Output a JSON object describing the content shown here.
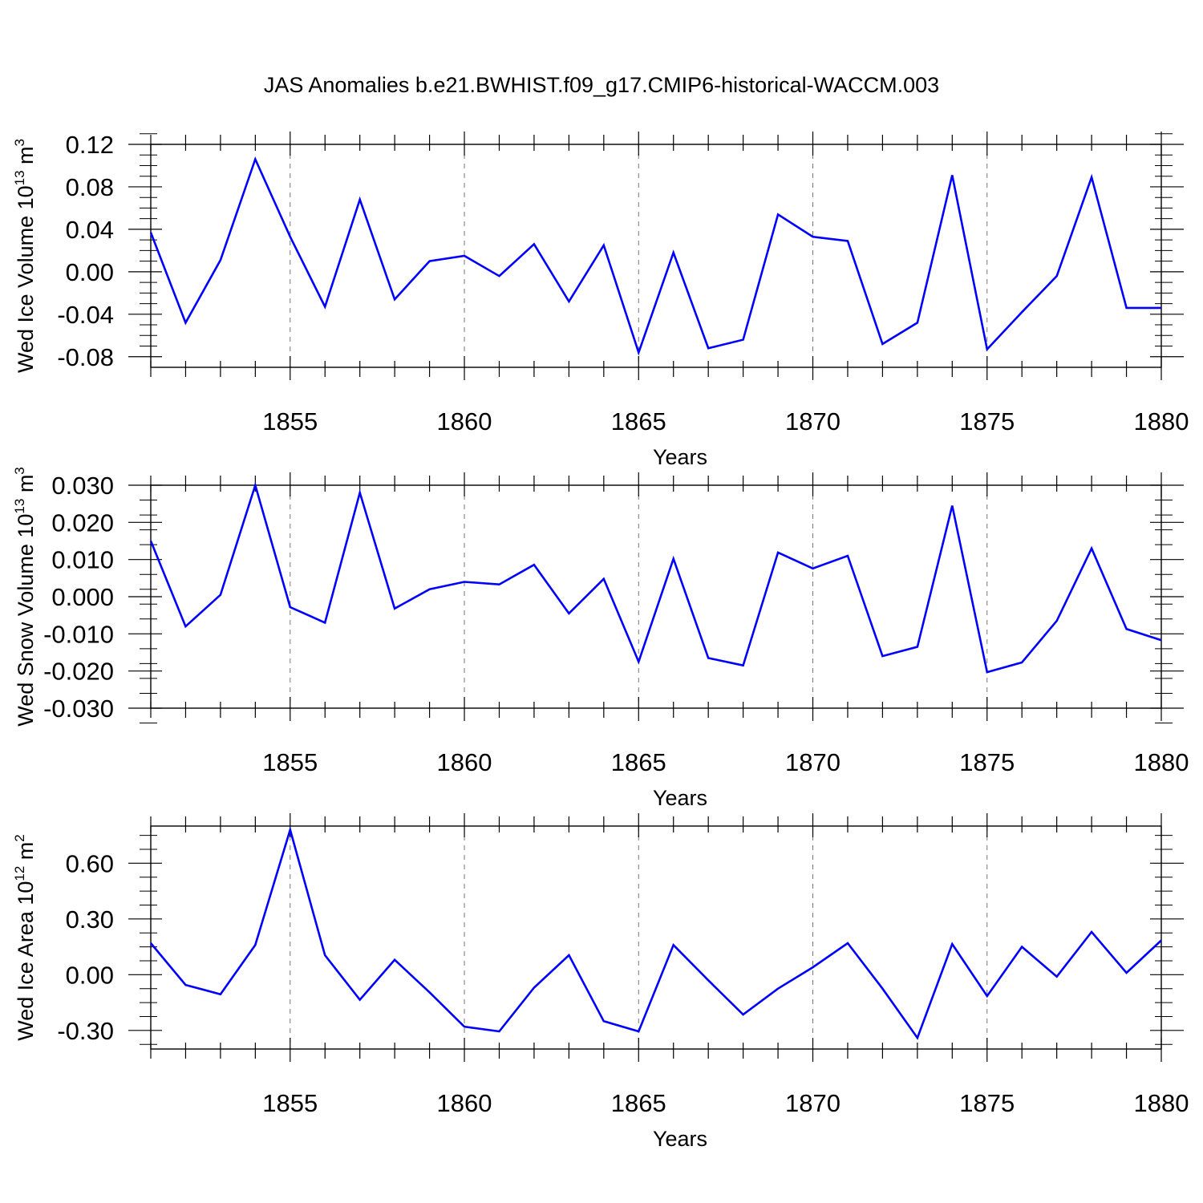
{
  "title": "JAS Anomalies b.e21.BWHIST.f09_g17.CMIP6-historical-WACCM.003",
  "colors": {
    "line": "#0000ff",
    "axis": "#000000",
    "grid": "#777777"
  },
  "chart_data": [
    {
      "type": "line",
      "ylabel": "Wed Ice Volume 10",
      "ylabel_sup": "13",
      "ylabel_unit": " m",
      "ylabel_unit_sup": "3",
      "xlabel": "Years",
      "xlim": [
        1851,
        1880
      ],
      "ylim": [
        -0.09,
        0.12
      ],
      "yticks": [
        0.12,
        0.08,
        0.04,
        0.0,
        -0.04,
        -0.08
      ],
      "ytick_labels": [
        "0.12",
        "0.08",
        "0.04",
        "0.00",
        "-0.04",
        "-0.08"
      ],
      "xticks": [
        1855,
        1860,
        1865,
        1870,
        1875,
        1880
      ],
      "xtick_labels": [
        "1855",
        "1860",
        "1865",
        "1870",
        "1875",
        "1880"
      ],
      "x": [
        1851,
        1852,
        1853,
        1854,
        1855,
        1856,
        1857,
        1858,
        1859,
        1860,
        1861,
        1862,
        1863,
        1864,
        1865,
        1866,
        1867,
        1868,
        1869,
        1870,
        1871,
        1872,
        1873,
        1874,
        1875,
        1876,
        1877,
        1878,
        1879,
        1880
      ],
      "series": [
        {
          "values": [
            0.037,
            -0.048,
            0.011,
            0.106,
            0.033,
            -0.033,
            0.068,
            -0.026,
            0.01,
            0.015,
            -0.004,
            0.026,
            -0.028,
            0.025,
            -0.076,
            0.018,
            -0.072,
            -0.064,
            0.054,
            0.033,
            0.029,
            -0.068,
            -0.048,
            0.091,
            -0.073,
            -0.038,
            -0.004,
            0.089,
            -0.034,
            -0.034
          ]
        }
      ]
    },
    {
      "type": "line",
      "ylabel": "Wed Snow Volume 10",
      "ylabel_sup": "13",
      "ylabel_unit": " m",
      "ylabel_unit_sup": "3",
      "xlabel": "Years",
      "xlim": [
        1851,
        1880
      ],
      "ylim": [
        -0.03,
        0.03
      ],
      "yticks": [
        0.03,
        0.02,
        0.01,
        0.0,
        -0.01,
        -0.02,
        -0.03
      ],
      "ytick_labels": [
        "0.030",
        "0.020",
        "0.010",
        "0.000",
        "-0.010",
        "-0.020",
        "-0.030"
      ],
      "xticks": [
        1855,
        1860,
        1865,
        1870,
        1875,
        1880
      ],
      "xtick_labels": [
        "1855",
        "1860",
        "1865",
        "1870",
        "1875",
        "1880"
      ],
      "x": [
        1851,
        1852,
        1853,
        1854,
        1855,
        1856,
        1857,
        1858,
        1859,
        1860,
        1861,
        1862,
        1863,
        1864,
        1865,
        1866,
        1867,
        1868,
        1869,
        1870,
        1871,
        1872,
        1873,
        1874,
        1875,
        1876,
        1877,
        1878,
        1879,
        1880
      ],
      "series": [
        {
          "values": [
            0.015,
            -0.008,
            0.0005,
            0.03,
            -0.0028,
            -0.007,
            0.028,
            -0.0032,
            0.002,
            0.004,
            0.0033,
            0.0086,
            -0.0045,
            0.0048,
            -0.0175,
            0.0102,
            -0.0165,
            -0.0185,
            0.0119,
            0.0076,
            0.011,
            -0.016,
            -0.0135,
            0.0245,
            -0.0203,
            -0.0177,
            -0.0065,
            0.013,
            -0.0087,
            -0.0117
          ]
        }
      ]
    },
    {
      "type": "line",
      "ylabel": "Wed Ice Area 10",
      "ylabel_sup": "12",
      "ylabel_unit": " m",
      "ylabel_unit_sup": "2",
      "xlabel": "Years",
      "xlim": [
        1851,
        1880
      ],
      "ylim": [
        -0.4,
        0.8
      ],
      "yticks": [
        0.6,
        0.3,
        0.0,
        -0.3
      ],
      "ytick_labels": [
        "0.60",
        "0.30",
        "0.00",
        "-0.30"
      ],
      "xticks": [
        1855,
        1860,
        1865,
        1870,
        1875,
        1880
      ],
      "xtick_labels": [
        "1855",
        "1860",
        "1865",
        "1870",
        "1875",
        "1880"
      ],
      "x": [
        1851,
        1852,
        1853,
        1854,
        1855,
        1856,
        1857,
        1858,
        1859,
        1860,
        1861,
        1862,
        1863,
        1864,
        1865,
        1866,
        1867,
        1868,
        1869,
        1870,
        1871,
        1872,
        1873,
        1874,
        1875,
        1876,
        1877,
        1878,
        1879,
        1880
      ],
      "series": [
        {
          "values": [
            0.17,
            -0.055,
            -0.105,
            0.16,
            0.78,
            0.105,
            -0.135,
            0.08,
            -0.095,
            -0.28,
            -0.305,
            -0.07,
            0.105,
            -0.25,
            -0.305,
            0.16,
            -0.03,
            -0.215,
            -0.075,
            0.04,
            0.17,
            -0.075,
            -0.34,
            0.165,
            -0.115,
            0.15,
            -0.01,
            0.23,
            0.01,
            0.185
          ]
        }
      ]
    }
  ]
}
